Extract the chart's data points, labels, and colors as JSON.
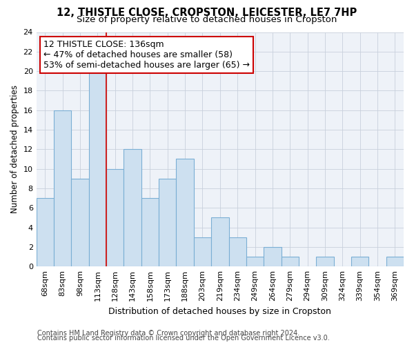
{
  "title": "12, THISTLE CLOSE, CROPSTON, LEICESTER, LE7 7HP",
  "subtitle": "Size of property relative to detached houses in Cropston",
  "xlabel": "Distribution of detached houses by size in Cropston",
  "ylabel": "Number of detached properties",
  "categories": [
    "68sqm",
    "83sqm",
    "98sqm",
    "113sqm",
    "128sqm",
    "143sqm",
    "158sqm",
    "173sqm",
    "188sqm",
    "203sqm",
    "219sqm",
    "234sqm",
    "249sqm",
    "264sqm",
    "279sqm",
    "294sqm",
    "309sqm",
    "324sqm",
    "339sqm",
    "354sqm",
    "369sqm"
  ],
  "values": [
    7,
    16,
    9,
    20,
    10,
    12,
    7,
    9,
    11,
    3,
    5,
    3,
    1,
    2,
    1,
    0,
    1,
    0,
    1,
    0,
    1
  ],
  "bar_color": "#cde0f0",
  "bar_edge_color": "#7aaed4",
  "vline_x_idx": 4,
  "vline_color": "#cc2222",
  "annotation_line1": "12 THISTLE CLOSE: 136sqm",
  "annotation_line2": "← 47% of detached houses are smaller (58)",
  "annotation_line3": "53% of semi-detached houses are larger (65) →",
  "annotation_box_color": "#ffffff",
  "annotation_box_edge": "#cc0000",
  "ylim": [
    0,
    24
  ],
  "yticks": [
    0,
    2,
    4,
    6,
    8,
    10,
    12,
    14,
    16,
    18,
    20,
    22,
    24
  ],
  "bg_color": "#eef2f8",
  "footer_line1": "Contains HM Land Registry data © Crown copyright and database right 2024.",
  "footer_line2": "Contains public sector information licensed under the Open Government Licence v3.0.",
  "title_fontsize": 10.5,
  "subtitle_fontsize": 9.5,
  "xlabel_fontsize": 9,
  "ylabel_fontsize": 8.5,
  "tick_fontsize": 8,
  "annotation_fontsize": 9,
  "footer_fontsize": 7
}
